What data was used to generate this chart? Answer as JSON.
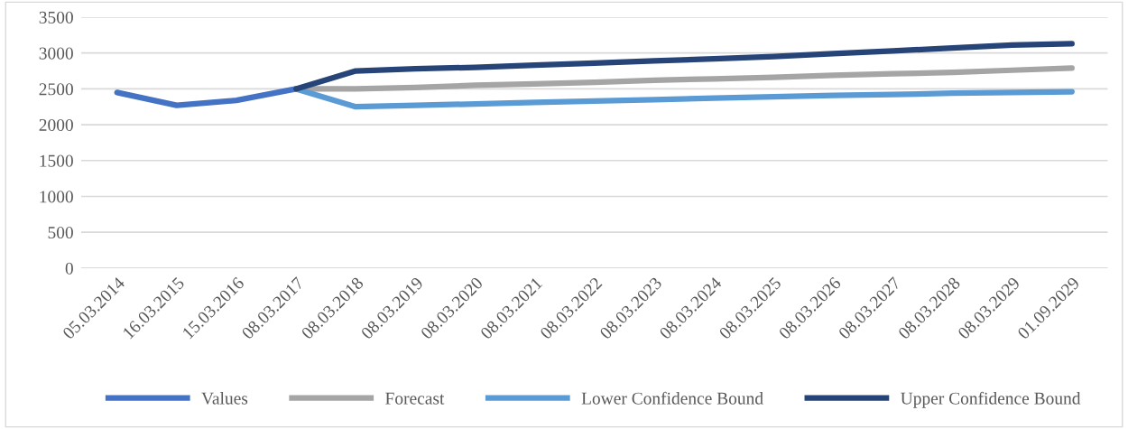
{
  "chart_data": {
    "type": "line",
    "categories": [
      "05.03.2014",
      "16.03.2015",
      "15.03.2016",
      "08.03.2017",
      "08.03.2018",
      "08.03.2019",
      "08.03.2020",
      "08.03.2021",
      "08.03.2022",
      "08.03.2023",
      "08.03.2024",
      "08.03.2025",
      "08.03.2026",
      "08.03.2027",
      "08.03.2028",
      "08.03.2029",
      "01.09.2029"
    ],
    "series": [
      {
        "name": "Values",
        "color": "#4472c4",
        "values": [
          2450,
          2270,
          2340,
          2500,
          null,
          null,
          null,
          null,
          null,
          null,
          null,
          null,
          null,
          null,
          null,
          null,
          null
        ]
      },
      {
        "name": "Forecast",
        "color": "#a5a5a5",
        "values": [
          null,
          null,
          null,
          2500,
          2500,
          2520,
          2550,
          2570,
          2590,
          2620,
          2640,
          2660,
          2690,
          2710,
          2730,
          2760,
          2790
        ]
      },
      {
        "name": "Lower Confidence Bound",
        "color": "#5b9bd5",
        "values": [
          null,
          null,
          null,
          2500,
          2250,
          2270,
          2290,
          2310,
          2330,
          2350,
          2370,
          2390,
          2410,
          2420,
          2440,
          2450,
          2460
        ]
      },
      {
        "name": "Upper Confidence Bound",
        "color": "#264478",
        "values": [
          null,
          null,
          null,
          2500,
          2750,
          2780,
          2800,
          2830,
          2860,
          2890,
          2920,
          2950,
          2990,
          3030,
          3070,
          3110,
          3130
        ]
      }
    ],
    "ylim": [
      0,
      3500
    ],
    "yticks": [
      0,
      500,
      1000,
      1500,
      2000,
      2500,
      3000,
      3500
    ],
    "grid": "y",
    "legend": "bottom",
    "marker": "none",
    "line_style": "solid"
  }
}
